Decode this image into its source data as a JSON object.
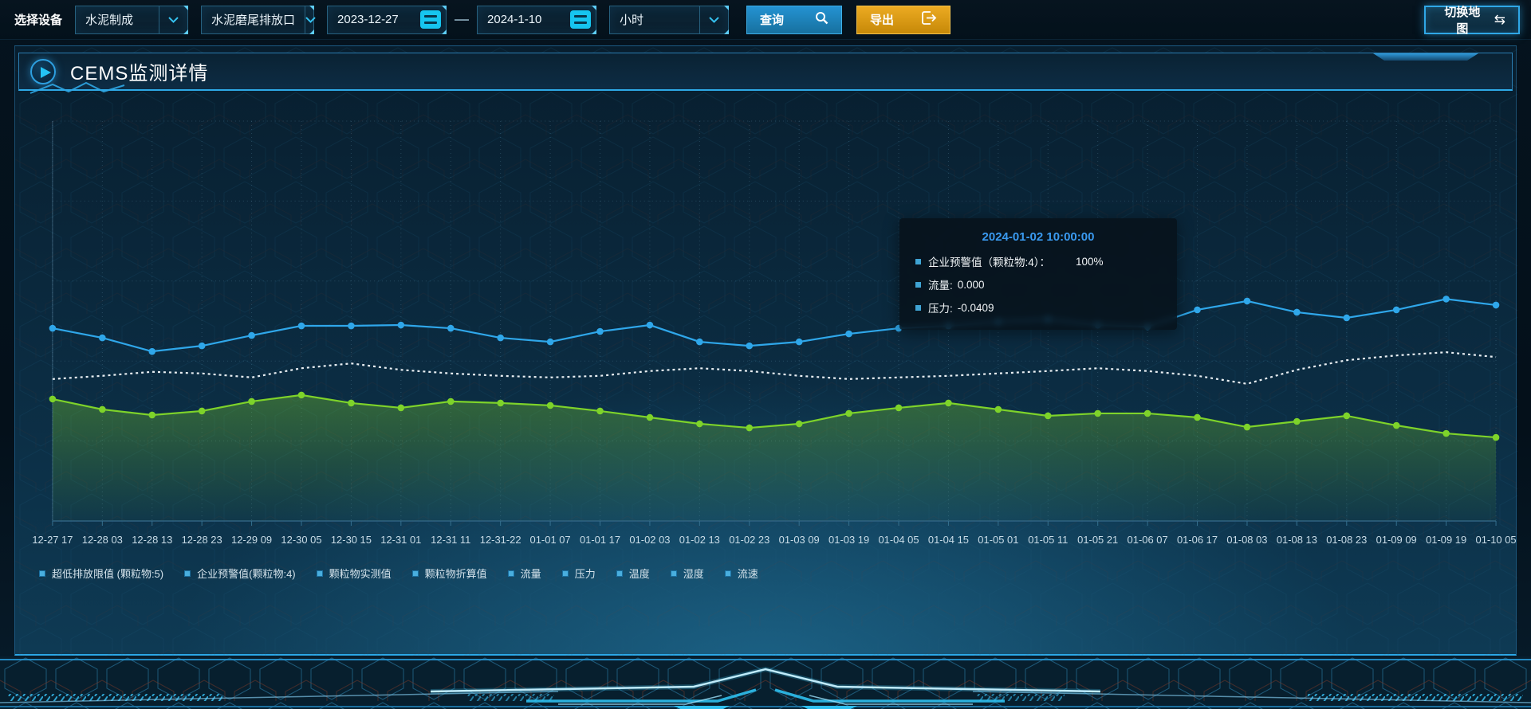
{
  "toolbar": {
    "device_label": "选择设备",
    "device_select": "水泥制成",
    "outlet_select": "水泥磨尾排放口",
    "date_start": "2023-12-27",
    "date_separator": "—",
    "date_end": "2024-1-10",
    "interval_select": "小时",
    "query_label": "查询",
    "export_label": "导出",
    "switch_map_label": "切换地图"
  },
  "panel": {
    "title": "CEMS监测详情"
  },
  "icons": {
    "swap_arrows": "⇆",
    "search": "magnifier-glyph-drawn-as-svg",
    "calendar": "cyan-rounded-square-with-lines",
    "chevron_down": "cyan-v-chevron",
    "export": "box-with-right-arrow",
    "play": "blue-circle-with-triangle"
  },
  "tooltip": {
    "title": "2024-01-02 10:00:00",
    "rows": [
      {
        "label": "企业预警值（颗粒物:4）：",
        "value": "100%"
      },
      {
        "label": "流量:",
        "value": "0.000"
      },
      {
        "label": "压力:",
        "value": "-0.0409"
      }
    ]
  },
  "legend": [
    "超低排放限值 (颗粒物:5)",
    "企业预警值(颗粒物:4)",
    "颗粒物实测值",
    "颗粒物折算值",
    "流量",
    "压力",
    "温度",
    "湿度",
    "流速"
  ],
  "colors": {
    "accent_blue": "#2fa7ea",
    "export_orange": "#e8a51e",
    "series_green": "#7ed32a",
    "series_white": "#e9eff3",
    "tooltip_title": "#3a9af0",
    "legend_marker": "#49aede"
  },
  "chart_data": {
    "type": "line",
    "title": "",
    "xlabel": "",
    "ylabel": "",
    "ylim": [
      0,
      100
    ],
    "value_unit": "relative-height-percent (no y-axis tick labels visible in screenshot)",
    "grid": true,
    "legend_position": "bottom",
    "categories": [
      "12-27 17",
      "12-28 03",
      "12-28 13",
      "12-28 23",
      "12-29 09",
      "12-30 05",
      "12-30 15",
      "12-31 01",
      "12-31 11",
      "12-31-22",
      "01-01 07",
      "01-01 17",
      "01-02 03",
      "01-02 13",
      "01-02 23",
      "01-03 09",
      "01-03 19",
      "01-04 05",
      "01-04 15",
      "01-05 01",
      "01-05 11",
      "01-05 21",
      "01-06 07",
      "01-06 17",
      "01-08 03",
      "01-08 13",
      "01-08 23",
      "01-09 09",
      "01-09 19",
      "01-10 05"
    ],
    "series": [
      {
        "name": "企业预警值(颗粒物:4)",
        "color": "#2fa7ea",
        "dashed": false,
        "markers": true,
        "area": false,
        "values": [
          48.2,
          45.8,
          42.4,
          43.8,
          46.4,
          48.8,
          48.8,
          49.0,
          48.2,
          45.8,
          44.8,
          47.4,
          49.0,
          44.8,
          43.8,
          44.8,
          46.8,
          48.2,
          48.8,
          49.8,
          50.4,
          49.0,
          48.6,
          52.8,
          55.0,
          52.2,
          50.8,
          52.8,
          55.5,
          54.0
        ]
      },
      {
        "name": "压力",
        "color": "#e9eff3",
        "dashed": true,
        "markers": false,
        "area": false,
        "values": [
          35.5,
          36.3,
          37.3,
          36.9,
          35.9,
          38.2,
          39.4,
          37.8,
          36.9,
          36.3,
          35.9,
          36.3,
          37.5,
          38.2,
          37.5,
          36.3,
          35.5,
          35.9,
          36.3,
          36.9,
          37.5,
          38.2,
          37.5,
          36.3,
          34.3,
          37.8,
          40.2,
          41.4,
          42.2,
          41.0
        ]
      },
      {
        "name": "流量",
        "color": "#7ed32a",
        "dashed": false,
        "markers": true,
        "area": true,
        "values": [
          30.5,
          27.9,
          26.5,
          27.5,
          29.9,
          31.5,
          29.5,
          28.3,
          29.9,
          29.5,
          28.9,
          27.5,
          25.9,
          24.3,
          23.3,
          24.3,
          26.9,
          28.3,
          29.5,
          27.9,
          26.3,
          26.9,
          26.9,
          25.9,
          23.5,
          24.9,
          26.3,
          23.9,
          21.9,
          20.9
        ]
      }
    ]
  }
}
